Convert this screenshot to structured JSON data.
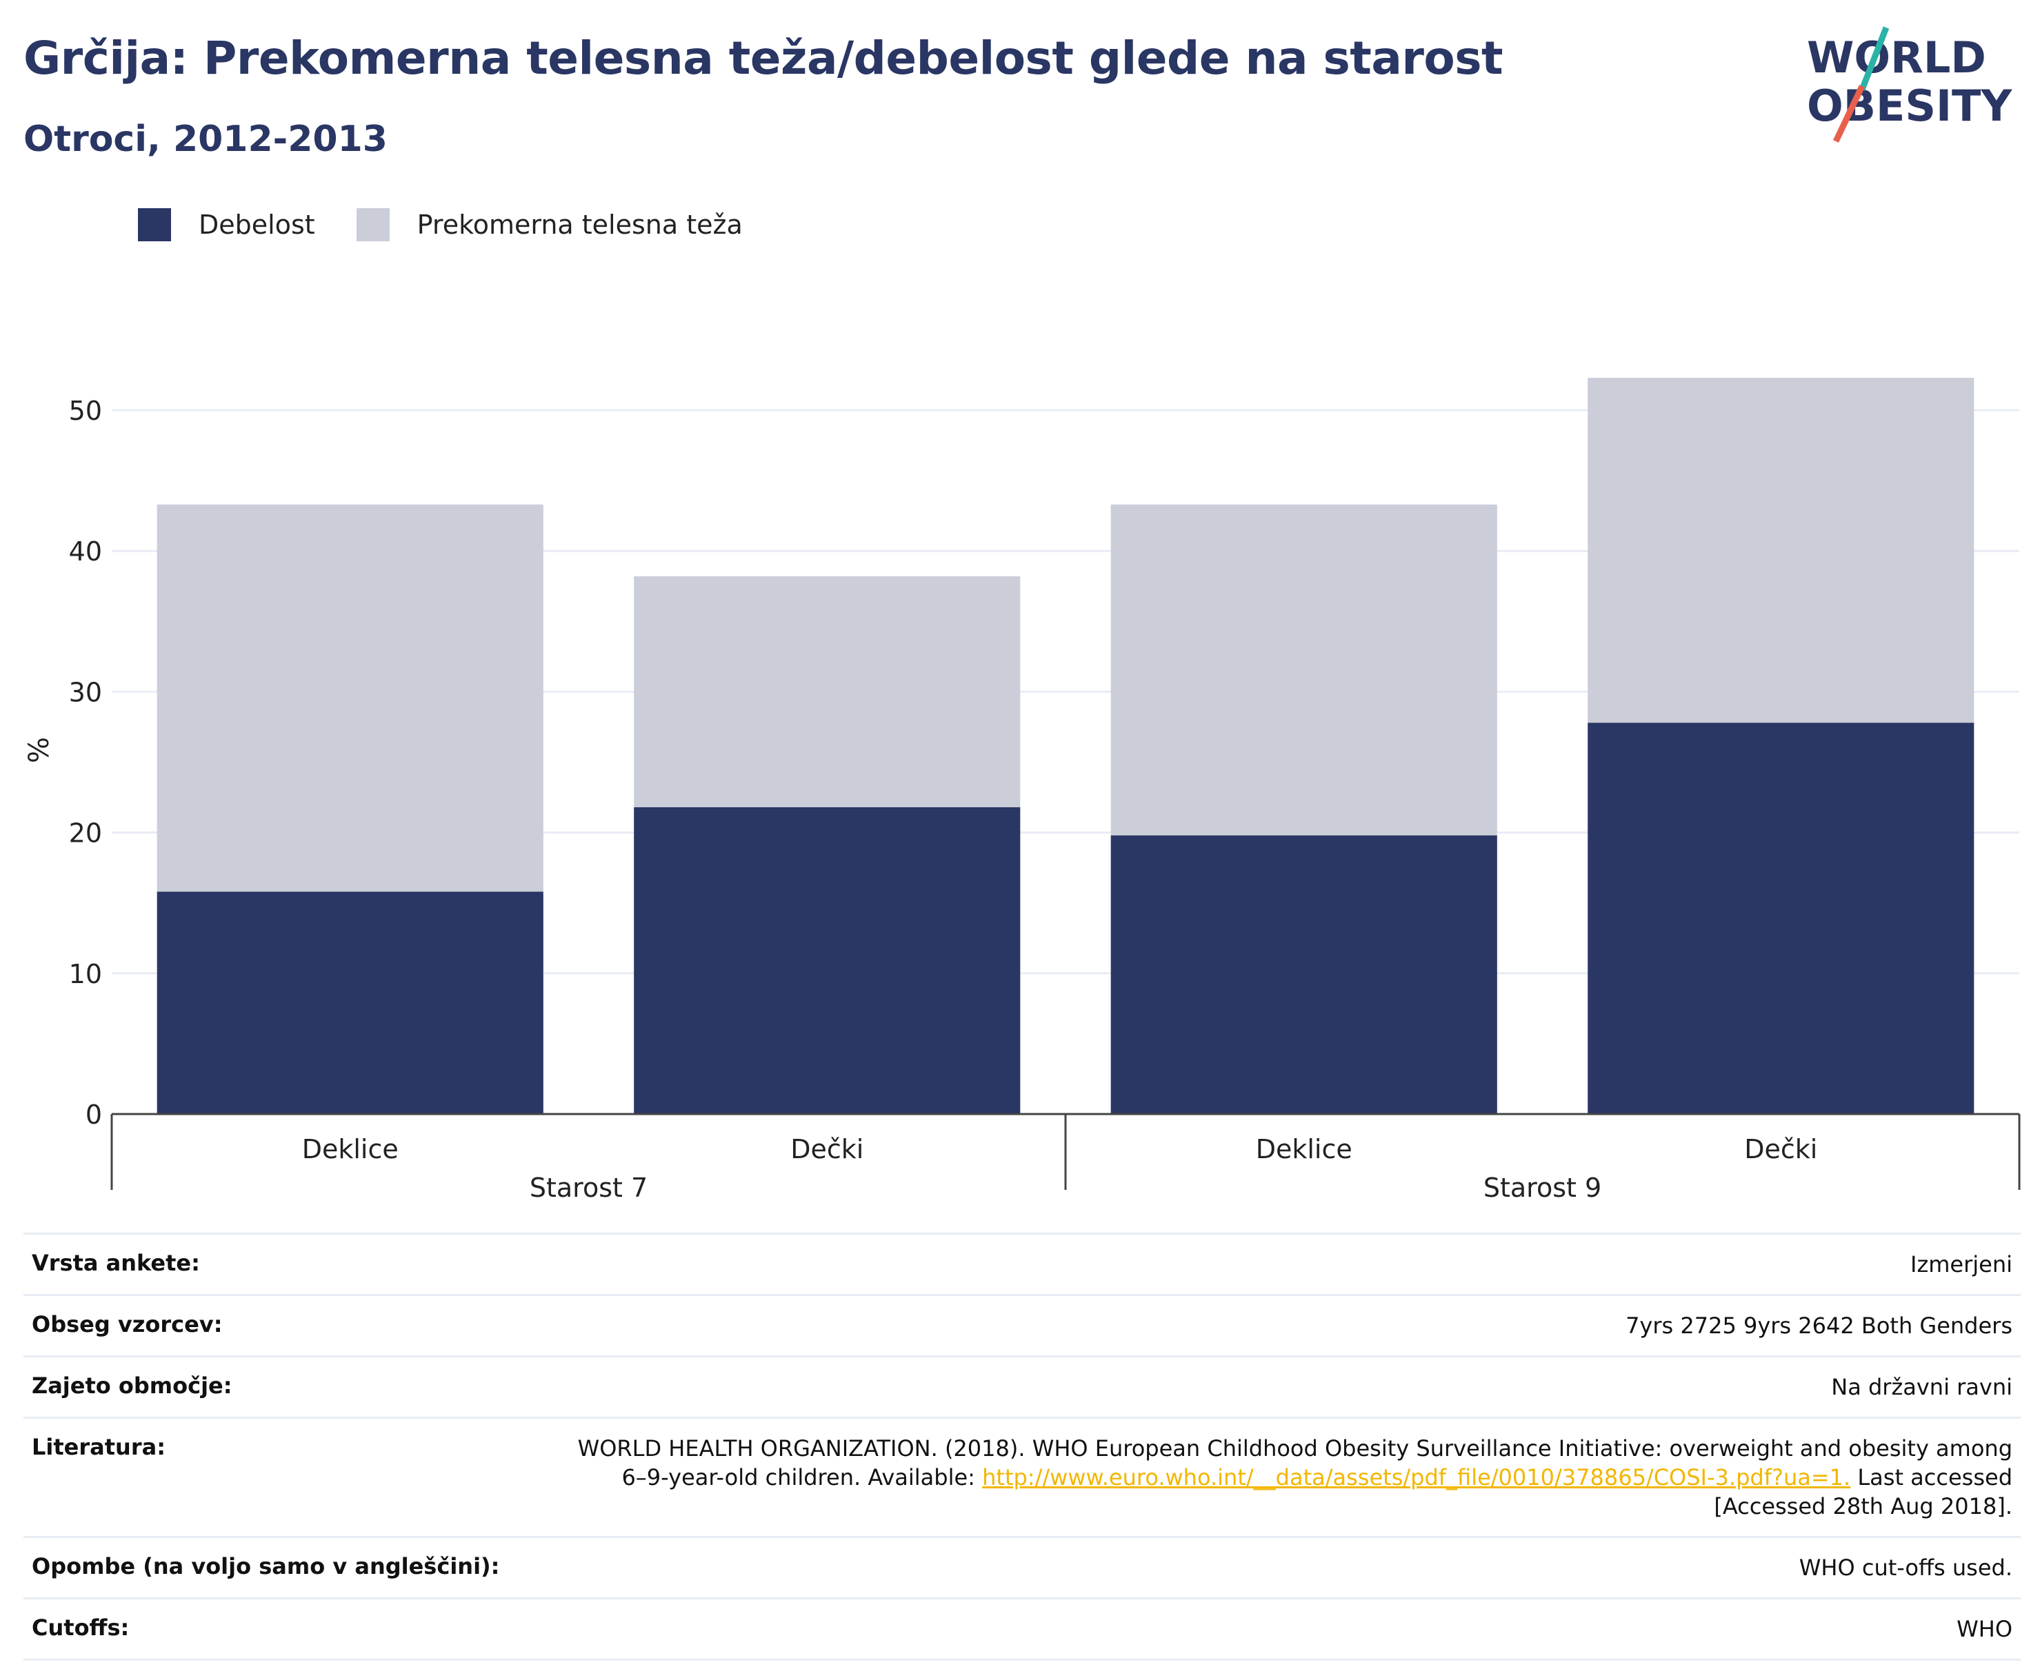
{
  "header": {
    "title": "Grčija: Prekomerna telesna teža/debelost glede na starost",
    "subtitle": "Otroci, 2012-2013"
  },
  "logo": {
    "line1": "WORLD",
    "line2": "OBESITY",
    "accent_teal": "#2ab3a6",
    "accent_red": "#e8604c"
  },
  "colors": {
    "obesity": "#2a3663",
    "overweight": "#cbcdd8",
    "axis": "#444444",
    "grid": "#e8ecf4"
  },
  "legend": [
    {
      "label": "Debelost",
      "color": "#2a3663"
    },
    {
      "label": "Prekomerna telesna teža",
      "color": "#cbcdd8"
    }
  ],
  "chart_data": {
    "type": "bar",
    "stacked": true,
    "ylabel": "%",
    "ylim": [
      0,
      55
    ],
    "yticks": [
      0,
      10,
      20,
      30,
      40,
      50
    ],
    "grid": true,
    "legend_position": "top-left",
    "groups": [
      {
        "label": "Starost 7",
        "categories": [
          "Deklice",
          "Dečki"
        ]
      },
      {
        "label": "Starost 9",
        "categories": [
          "Deklice",
          "Dečki"
        ]
      }
    ],
    "categories": [
      "Deklice",
      "Dečki",
      "Deklice",
      "Dečki"
    ],
    "series": [
      {
        "name": "Debelost",
        "values": [
          15.8,
          21.8,
          19.8,
          27.8
        ]
      },
      {
        "name": "Prekomerna telesna teža",
        "values": [
          27.5,
          16.4,
          23.5,
          24.5
        ]
      }
    ]
  },
  "info": [
    {
      "key": "Vrsta ankete:",
      "value": "Izmerjeni"
    },
    {
      "key": "Obseg vzorcev:",
      "value": "7yrs 2725 9yrs 2642 Both Genders"
    },
    {
      "key": "Zajeto območje:",
      "value": "Na državni ravni"
    },
    {
      "key": "Literatura:",
      "value_before": "WORLD HEALTH ORGANIZATION. (2018). WHO European Childhood Obesity Surveillance Initiative: overweight and obesity among 6–9-year-old children. Available: ",
      "link": "http://www.euro.who.int/__data/assets/pdf_file/0010/378865/COSI-3.pdf?ua=1.",
      "value_after": " Last accessed [Accessed 28th Aug 2018]."
    },
    {
      "key": "Opombe (na voljo samo v angleščini):",
      "value": "WHO cut-offs used."
    },
    {
      "key": "Cutoffs:",
      "value": "WHO"
    }
  ]
}
